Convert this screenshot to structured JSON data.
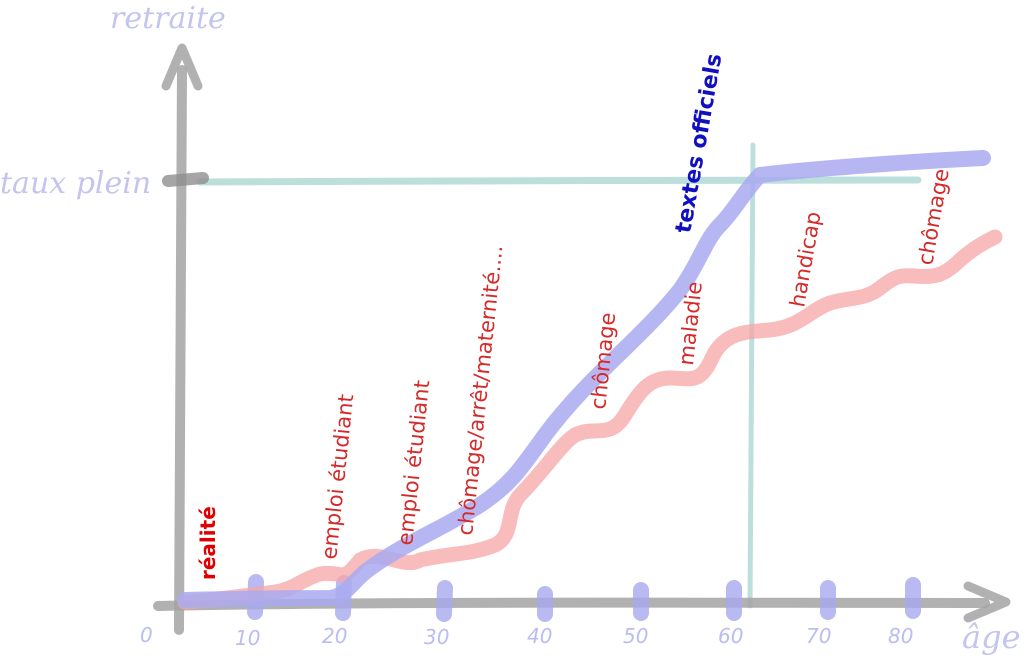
{
  "axes": {
    "y_label": "retraite",
    "x_label": "âge",
    "origin": "0",
    "taux_plein_label": "taux plein",
    "x_ticks": [
      "10",
      "20",
      "30",
      "40",
      "50",
      "60",
      "70",
      "80"
    ]
  },
  "series": {
    "reality_label": "réalité",
    "official_label": "textes officiels"
  },
  "annotations": [
    "emploi étudiant",
    "emploi étudiant",
    "chômage/arrêt/maternité....",
    "chômage",
    "maladie",
    "handicap",
    "chômage"
  ],
  "colors": {
    "axis": "#9a9a9a",
    "reality_curve": "#f7b3b3",
    "official_curve": "#a9aaf0",
    "taux_plein_line": "#b5dcd8",
    "annotation_text": "#d52a2a"
  }
}
